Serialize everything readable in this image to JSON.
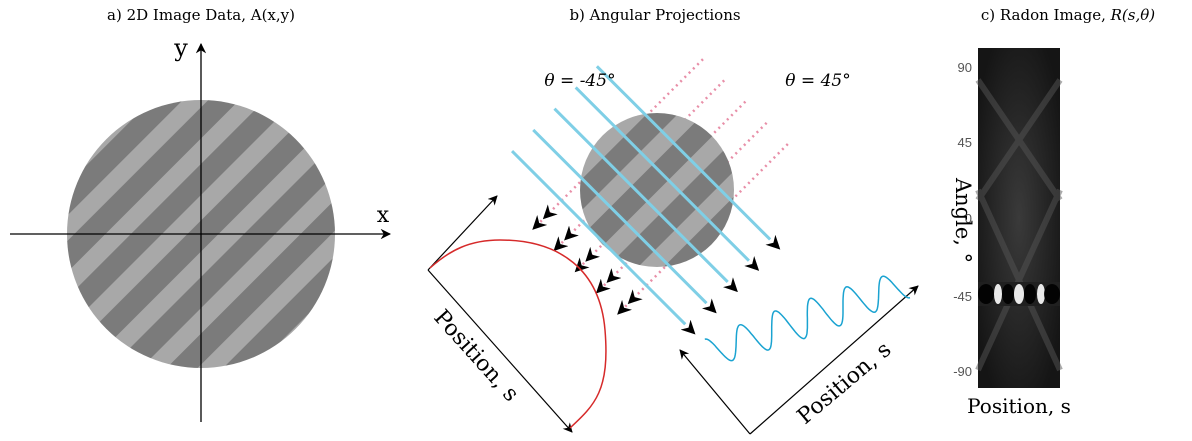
{
  "panels": {
    "a": {
      "title": "a) 2D Image Data, A(x,y)",
      "x_label": "x",
      "y_label": "y"
    },
    "b": {
      "title": "b) Angular Projections",
      "angle_left": "θ = -45°",
      "angle_right": "θ = 45°",
      "position_left": "Position, s",
      "position_right": "Position, s"
    },
    "c": {
      "title": "c) Radon Image, ",
      "title_italic": "R(s,θ)",
      "y_label": "Angle, °",
      "x_label": "Position, s",
      "yticks": [
        "90",
        "45",
        "0",
        "-45",
        "-90"
      ]
    }
  }
}
